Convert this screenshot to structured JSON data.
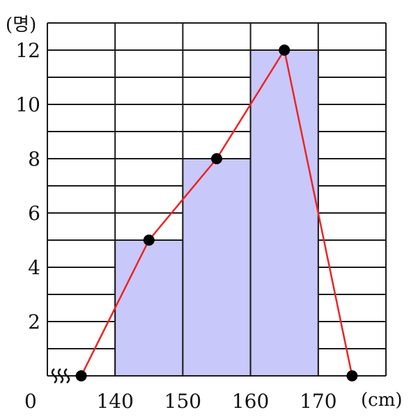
{
  "chart_data": {
    "type": "bar",
    "subtype": "histogram-with-frequency-polygon",
    "bins": [
      {
        "from": 140,
        "to": 150,
        "value": 5
      },
      {
        "from": 150,
        "to": 160,
        "value": 8
      },
      {
        "from": 160,
        "to": 170,
        "value": 12
      }
    ],
    "polygon": {
      "x": [
        135,
        145,
        155,
        165,
        175
      ],
      "y": [
        0,
        5,
        8,
        12,
        0
      ]
    },
    "xlim": [
      130,
      180
    ],
    "ylim": [
      0,
      13
    ],
    "x_ticks": [
      "140",
      "150",
      "160",
      "170"
    ],
    "y_ticks": [
      "2",
      "4",
      "6",
      "8",
      "10",
      "12"
    ],
    "origin_label": "0",
    "xlabel": "(cm)",
    "ylabel": "(명)",
    "axis_break": true,
    "grid": true,
    "colors": {
      "bar": "#c8c8fa",
      "polygon": "#ee2222",
      "point": "#000000",
      "grid": "#1a1a1a"
    }
  }
}
